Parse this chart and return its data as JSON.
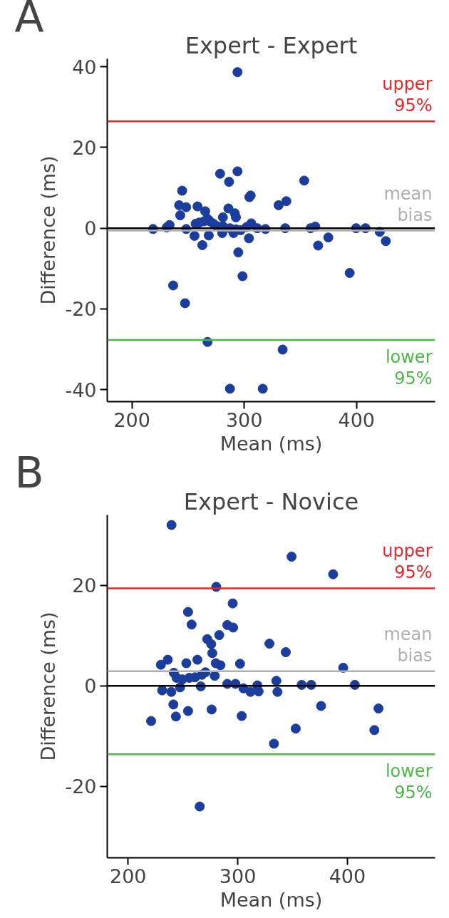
{
  "chart_data": [
    {
      "type": "scatter",
      "title": "Expert - Expert",
      "xlabel": "Mean (ms)",
      "ylabel": "Difference (ms)",
      "annotations": [
        "A"
      ],
      "marker": "circle",
      "grid": false,
      "xlim": [
        178,
        470
      ],
      "ylim": [
        -43,
        42
      ],
      "xticks": [
        200,
        300,
        400
      ],
      "yticks": [
        -40,
        -20,
        0,
        20,
        40
      ],
      "ref_lines": [
        {
          "axis": "y",
          "value": 26.5,
          "label": "upper 95%",
          "color": "#e8262a"
        },
        {
          "axis": "y",
          "value": -0.6,
          "label": "mean bias",
          "color": "#b0b0b0"
        },
        {
          "axis": "y",
          "value": 0,
          "label": null,
          "color": "#000000"
        },
        {
          "axis": "y",
          "value": -27.7,
          "label": "lower 95%",
          "color": "#4cb848"
        }
      ],
      "series": [
        {
          "color": "#1b3d9c",
          "x": [
            294,
            294,
            278.5,
            286.5,
            244.7,
            242,
            248.3,
            243,
            258.4,
            265.2,
            285.9,
            291.6,
            292.6,
            281,
            304.6,
            305.7,
            330.6,
            337.5,
            218.8,
            231,
            233.5,
            248.3,
            255.7,
            262.7,
            268.4,
            280.4,
            290.5,
            294.7,
            298.5,
            304.2,
            236.7,
            247.3,
            267.3,
            334.2,
            287.3,
            316.5,
            256.7,
            259.9,
            264.1,
            267.3,
            269.4,
            272.6,
            275.7,
            281,
            287.3,
            292.6,
            296.8,
            302.1,
            306.3,
            311.6,
            318.9,
            336.5,
            353.4,
            359,
            363.3,
            374.9,
            365.8,
            393.9,
            399.6,
            408,
            420.7,
            426.1
          ],
          "values": [
            38.7,
            14.1,
            13.5,
            11.5,
            9.3,
            5.7,
            5.2,
            3.2,
            5.4,
            4.2,
            4.9,
            3.7,
            2.7,
            2.7,
            7.7,
            8.1,
            5.7,
            6.7,
            -0.2,
            0.2,
            0.8,
            -0.2,
            -1.9,
            -4.2,
            -1.8,
            -1.2,
            -1.2,
            -6.0,
            -11.9,
            -2.5,
            -14.2,
            -18.6,
            -28.2,
            -30.1,
            -39.8,
            -39.8,
            1.1,
            1.4,
            1.7,
            2.3,
            1.7,
            1.1,
            0.5,
            0.5,
            0,
            -0.3,
            -0.5,
            0.3,
            1.2,
            0,
            -0.2,
            0,
            11.8,
            0,
            0.4,
            -2.3,
            -4.3,
            -11.1,
            0,
            0,
            -0.9,
            -3.2
          ]
        }
      ]
    },
    {
      "type": "scatter",
      "title": "Expert - Novice",
      "xlabel": "Mean (ms)",
      "ylabel": "Difference (ms)",
      "annotations": [
        "B"
      ],
      "marker": "circle",
      "grid": false,
      "xlim": [
        181,
        480
      ],
      "ylim": [
        -34.2,
        34
      ],
      "xticks": [
        200,
        300,
        400
      ],
      "yticks": [
        -20,
        0,
        20
      ],
      "ref_lines": [
        {
          "axis": "y",
          "value": 19.4,
          "label": "upper 95%",
          "color": "#e8262a"
        },
        {
          "axis": "y",
          "value": 2.9,
          "label": "mean bias",
          "color": "#b0b0b0"
        },
        {
          "axis": "y",
          "value": 0,
          "label": null,
          "color": "#000000"
        },
        {
          "axis": "y",
          "value": -13.6,
          "label": "lower 95%",
          "color": "#4cb848"
        }
      ],
      "series": [
        {
          "color": "#1b3d9c",
          "x": [
            239.6,
            280.4,
            295.4,
            254.7,
            257.9,
            290.5,
            295.8,
            283.1,
            272.2,
            275.8,
            276.8,
            280,
            284.2,
            328.9,
            343.8,
            302.1,
            229.9,
            236.2,
            253.1,
            263.2,
            241.7,
            244.2,
            249.5,
            255.8,
            261,
            267.3,
            270.5,
            279,
            247.4,
            266.3,
            231.1,
            239.4,
            290.5,
            297.9,
            305.2,
            311.6,
            319,
            317.9,
            335.2,
            336.2,
            358.3,
            367,
            241.3,
            243.6,
            221,
            254.7,
            276.2,
            303.6,
            333,
            352.9,
            265.3,
            349.1,
            387,
            396.2,
            406.8,
            376,
            424.6,
            428.4
          ],
          "values": [
            32.0,
            19.7,
            16.4,
            14.7,
            12.2,
            12.1,
            11.6,
            10.1,
            9.3,
            8.3,
            6.5,
            4.5,
            4.1,
            8.4,
            6.7,
            4.4,
            4.2,
            5.2,
            4.5,
            5.2,
            2.6,
            1.6,
            1.3,
            1.6,
            1.7,
            2.2,
            2.7,
            2.0,
            -0.3,
            -0.1,
            -0.9,
            -1.2,
            0.4,
            0.4,
            -0.5,
            -1.2,
            -1.1,
            0.1,
            1.0,
            -1.2,
            0.2,
            0.2,
            -3.7,
            -6.1,
            -7.0,
            -5.0,
            -4.7,
            -6.0,
            -11.5,
            -8.5,
            -24.0,
            25.7,
            22.2,
            3.6,
            0.2,
            -4.0,
            -8.8,
            -4.5
          ]
        }
      ]
    }
  ]
}
